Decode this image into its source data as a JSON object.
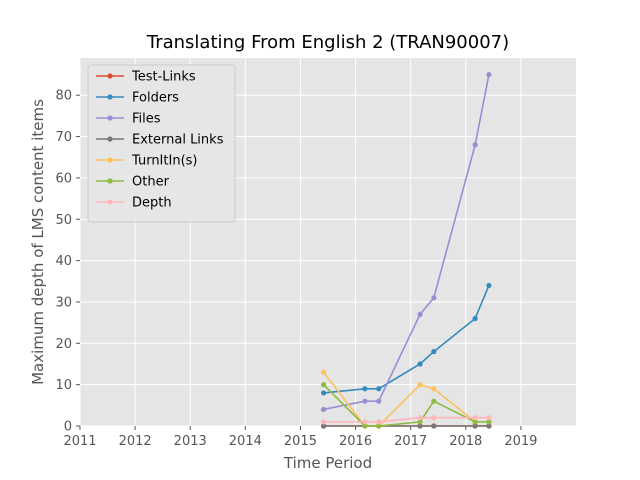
{
  "chart_data": {
    "type": "line",
    "title": "Translating From English 2 (TRAN90007)",
    "xlabel": "Time Period",
    "ylabel": "Maximum depth of LMS content items",
    "xlim": [
      2011,
      2020
    ],
    "ylim": [
      0,
      89
    ],
    "xticks": [
      2011,
      2012,
      2013,
      2014,
      2015,
      2016,
      2017,
      2018,
      2019
    ],
    "yticks": [
      0,
      10,
      20,
      30,
      40,
      50,
      60,
      70,
      80
    ],
    "grid": true,
    "legend_position": "top-left",
    "series": [
      {
        "name": "Test-Links",
        "color": "#e24a33",
        "x": [
          2015.42,
          2016.42,
          2017.17,
          2017.42,
          2018.17,
          2018.42
        ],
        "y": [
          0,
          0,
          0,
          0,
          0,
          0
        ]
      },
      {
        "name": "Folders",
        "color": "#348abd",
        "x": [
          2015.42,
          2016.17,
          2016.42,
          2017.17,
          2017.42,
          2018.17,
          2018.42
        ],
        "y": [
          8,
          9,
          9,
          15,
          18,
          26,
          34
        ]
      },
      {
        "name": "Files",
        "color": "#988ed5",
        "x": [
          2015.42,
          2016.17,
          2016.42,
          2017.17,
          2017.42,
          2018.17,
          2018.42
        ],
        "y": [
          4,
          6,
          6,
          27,
          31,
          68,
          85
        ]
      },
      {
        "name": "External Links",
        "color": "#777777",
        "x": [
          2015.42,
          2016.17,
          2016.42,
          2017.17,
          2017.42,
          2018.17,
          2018.42
        ],
        "y": [
          0,
          0,
          0,
          0,
          0,
          0,
          0
        ]
      },
      {
        "name": "TurnItIn(s)",
        "color": "#fbc15e",
        "x": [
          2015.42,
          2016.17,
          2016.42,
          2017.17,
          2017.42,
          2018.17,
          2018.42
        ],
        "y": [
          13,
          0,
          0,
          10,
          9,
          1,
          1
        ]
      },
      {
        "name": "Other",
        "color": "#8eba42",
        "x": [
          2015.42,
          2016.17,
          2016.42,
          2017.17,
          2017.42,
          2018.17,
          2018.42
        ],
        "y": [
          10,
          0,
          0,
          1,
          6,
          1,
          1
        ]
      },
      {
        "name": "Depth",
        "color": "#ffb5b8",
        "x": [
          2015.42,
          2016.17,
          2016.42,
          2017.17,
          2017.42,
          2018.17,
          2018.42
        ],
        "y": [
          1,
          1,
          1,
          2,
          2,
          2,
          2
        ]
      }
    ]
  }
}
